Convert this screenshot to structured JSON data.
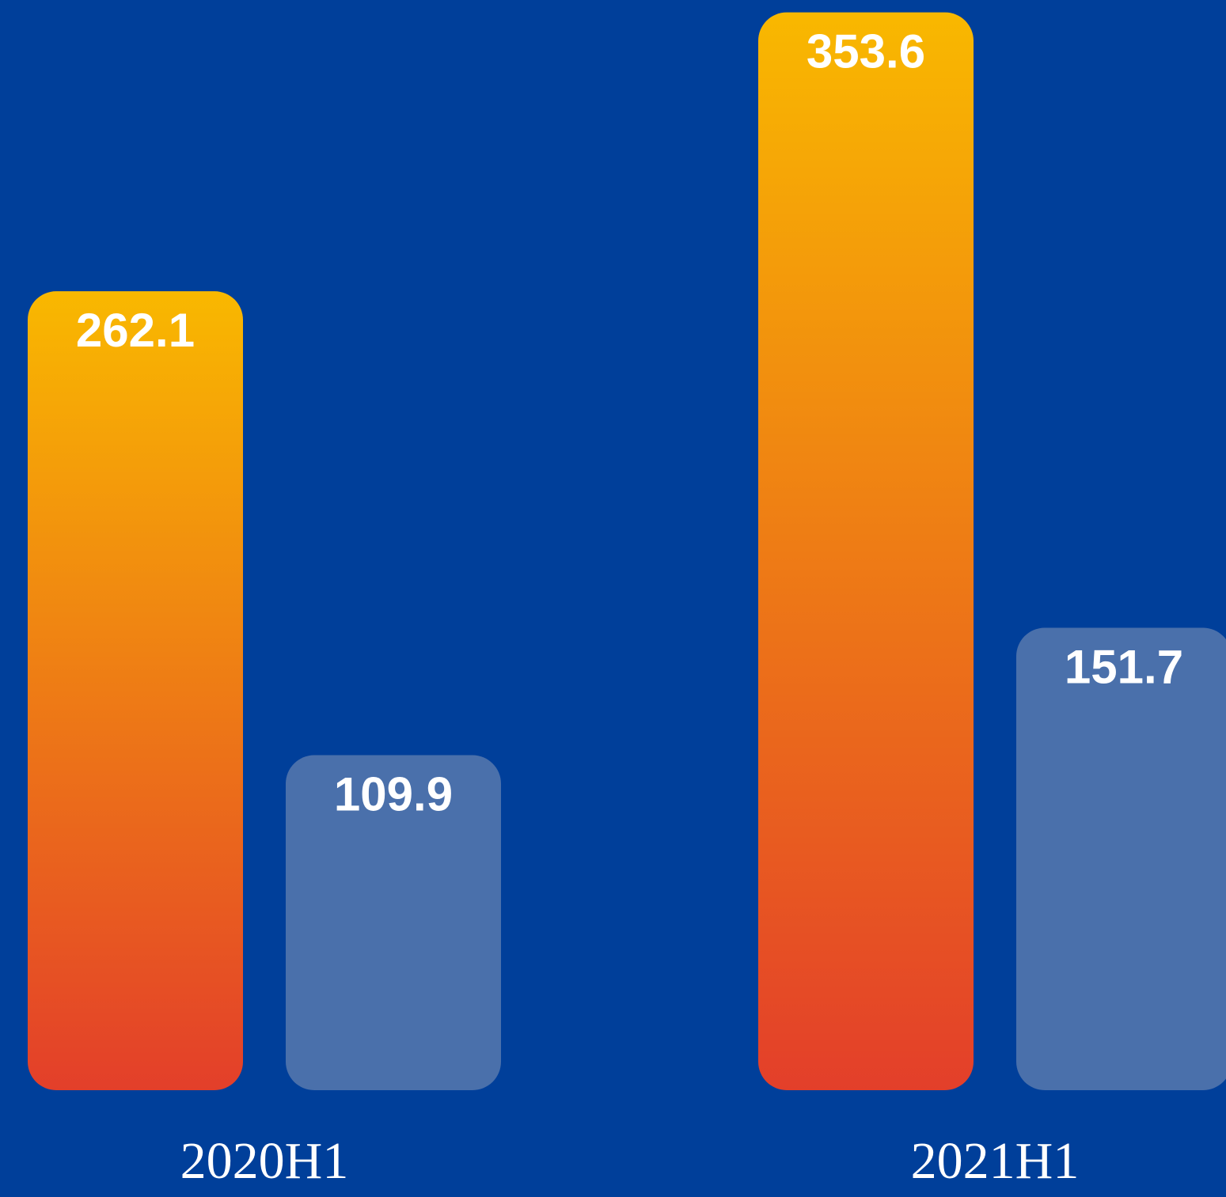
{
  "chart_data": {
    "type": "bar",
    "categories": [
      "2020H1",
      "2021H1"
    ],
    "series": [
      {
        "colors": [
          "#f9b800",
          "#e33f2a"
        ],
        "values": [
          262.1,
          353.6
        ]
      },
      {
        "color": "#4a70ab",
        "values": [
          109.9,
          151.7
        ]
      }
    ],
    "background": "#003f9a"
  }
}
